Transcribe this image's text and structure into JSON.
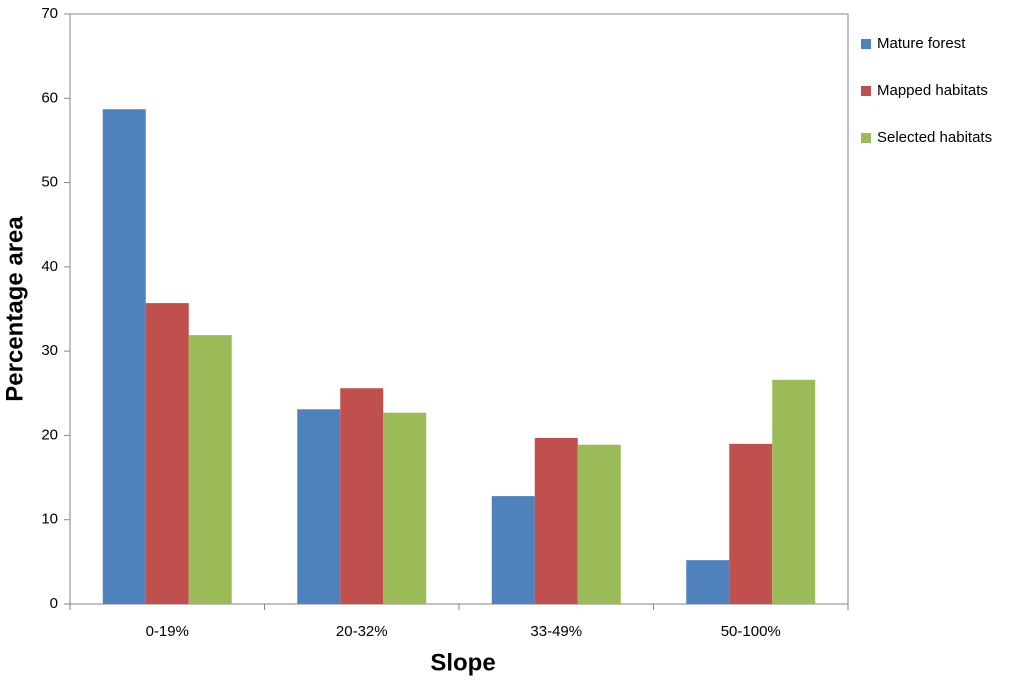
{
  "chart_data": {
    "type": "bar",
    "x_label": "Slope",
    "y_label": "Percentage area",
    "categories": [
      "0-19%",
      "20-32%",
      "33-49%",
      "50-100%"
    ],
    "series": [
      {
        "name": "Mature forest",
        "color": "#4f81bd",
        "values": [
          58.7,
          23.1,
          12.8,
          5.2
        ]
      },
      {
        "name": "Mapped habitats",
        "color": "#c0504d",
        "values": [
          35.7,
          25.6,
          19.7,
          19.0
        ]
      },
      {
        "name": "Selected habitats",
        "color": "#9bbb59",
        "values": [
          31.9,
          22.7,
          18.9,
          26.6
        ]
      }
    ],
    "ylim": [
      0,
      70
    ],
    "yticks": [
      0,
      10,
      20,
      30,
      40,
      50,
      60,
      70
    ],
    "grid": false,
    "legend": "right"
  }
}
